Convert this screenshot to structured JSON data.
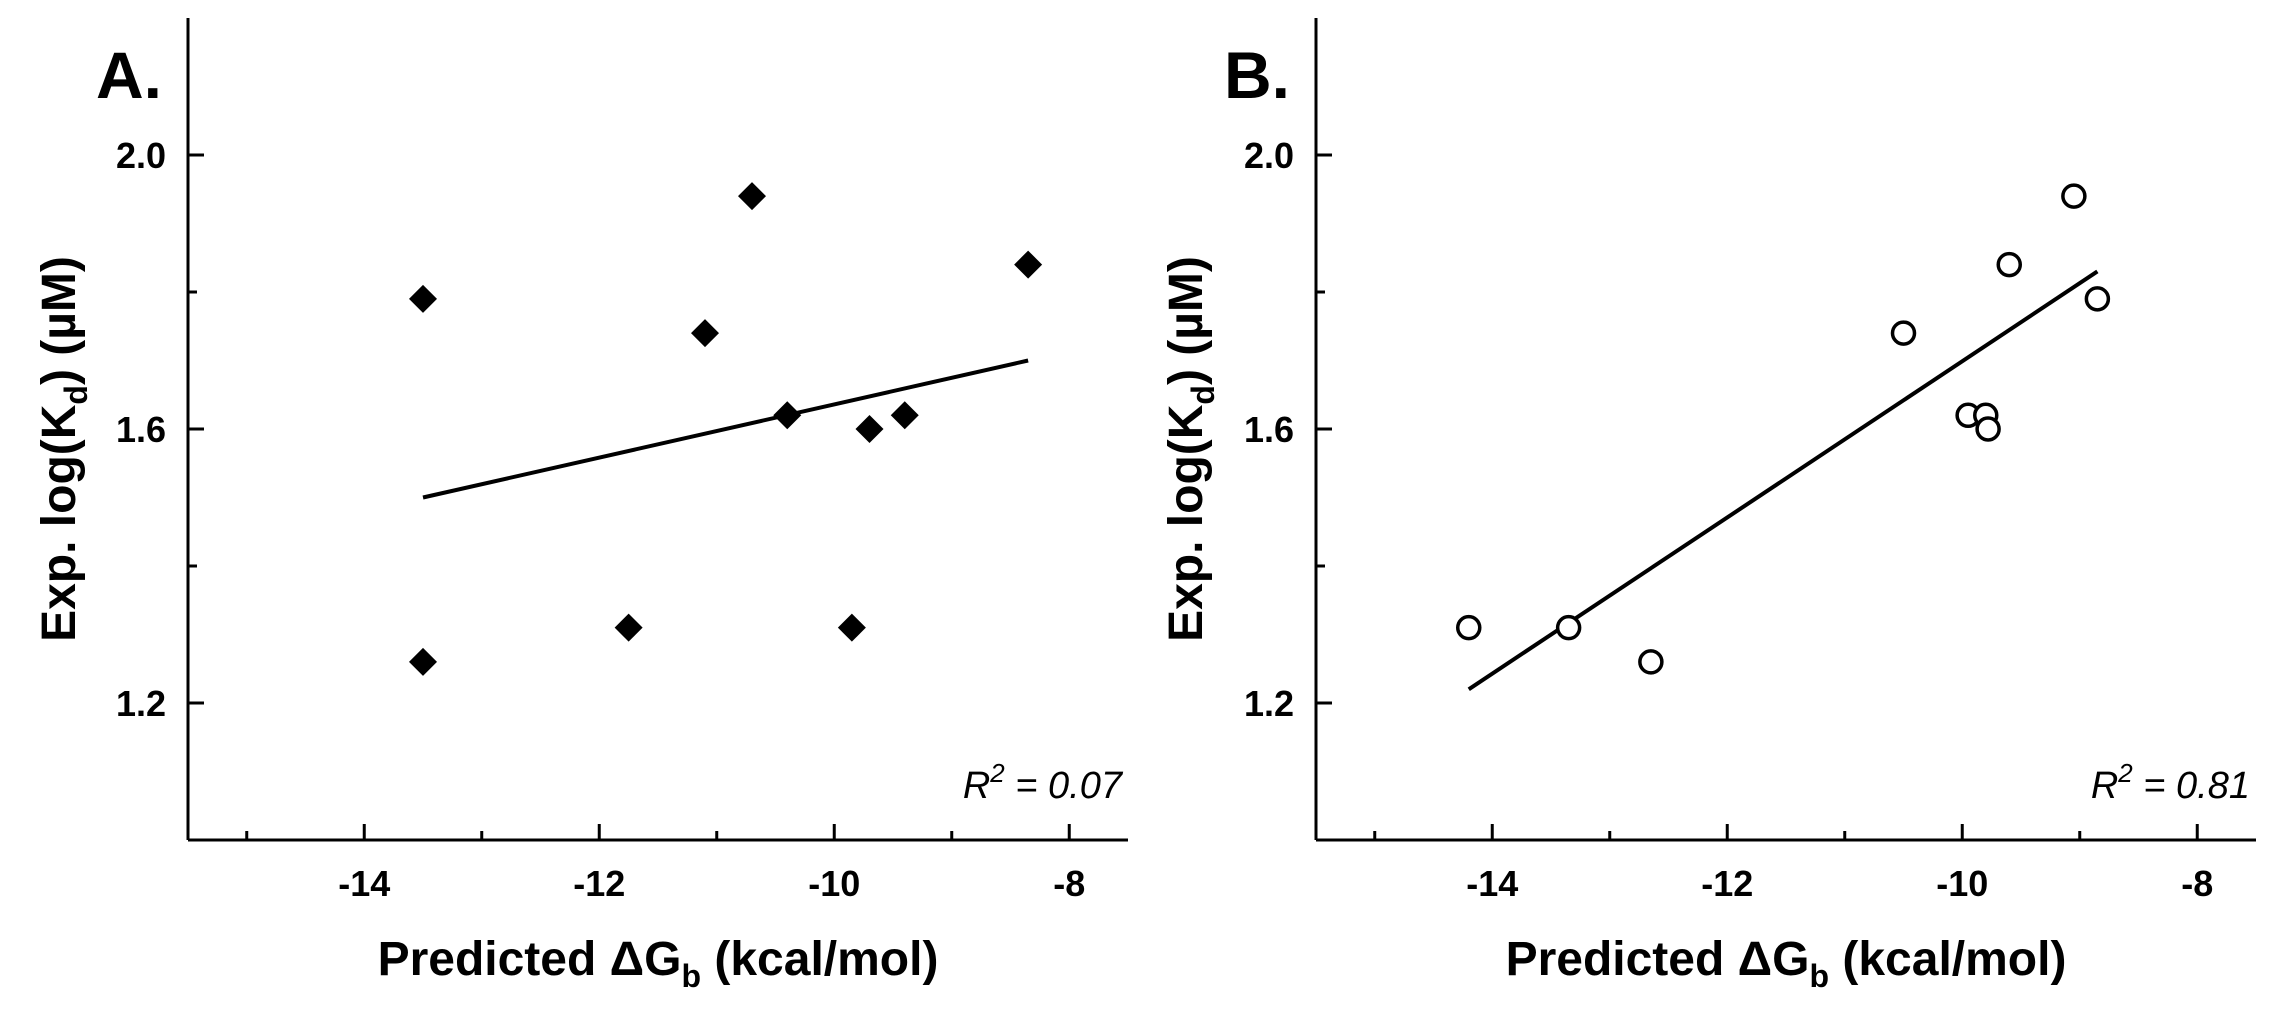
{
  "chart_data": [
    {
      "type": "scatter",
      "panel_label": "A.",
      "marker": "filled-diamond",
      "xlabel": "Predicted ΔG",
      "xlabel_sub": "b",
      "xlabel_units": " (kcal/mol)",
      "ylabel_pre": "Exp. log(K",
      "ylabel_sub": "d",
      "ylabel_post": ") (µM)",
      "xlim": [
        -15.5,
        -7.5
      ],
      "ylim": [
        1.0,
        2.2
      ],
      "xticks": [
        -14,
        -12,
        -10,
        -8
      ],
      "xtick_labels": [
        "-14",
        "-12",
        "-10",
        "-8"
      ],
      "xticks_minor": [
        -15,
        -13,
        -11,
        -9
      ],
      "yticks": [
        1.2,
        1.6,
        2.0
      ],
      "ytick_labels": [
        "1.2",
        "1.6",
        "2.0"
      ],
      "yticks_minor": [
        1.4,
        1.8
      ],
      "x": [
        -13.5,
        -13.5,
        -11.75,
        -11.1,
        -10.7,
        -10.4,
        -9.85,
        -9.7,
        -9.4,
        -8.35
      ],
      "y": [
        1.79,
        1.26,
        1.31,
        1.74,
        1.94,
        1.62,
        1.31,
        1.6,
        1.62,
        1.84
      ],
      "fit": {
        "x": [
          -13.5,
          -8.35
        ],
        "y": [
          1.5,
          1.7
        ]
      },
      "r2_label": "R",
      "r2_sup": "2",
      "r2_value": " = 0.07"
    },
    {
      "type": "scatter",
      "panel_label": "B.",
      "marker": "open-circle",
      "xlabel": "Predicted ΔG",
      "xlabel_sub": "b",
      "xlabel_units": " (kcal/mol)",
      "ylabel_pre": "Exp. log(K",
      "ylabel_sub": "d",
      "ylabel_post": ") (µM)",
      "xlim": [
        -15.5,
        -7.5
      ],
      "ylim": [
        1.0,
        2.2
      ],
      "xticks": [
        -14,
        -12,
        -10,
        -8
      ],
      "xtick_labels": [
        "-14",
        "-12",
        "-10",
        "-8"
      ],
      "xticks_minor": [
        -15,
        -13,
        -11,
        -9
      ],
      "yticks": [
        1.2,
        1.6,
        2.0
      ],
      "ytick_labels": [
        "1.2",
        "1.6",
        "2.0"
      ],
      "yticks_minor": [
        1.4,
        1.8
      ],
      "x": [
        -14.2,
        -13.35,
        -12.65,
        -10.5,
        -9.95,
        -9.8,
        -9.78,
        -9.6,
        -9.05,
        -8.85
      ],
      "y": [
        1.31,
        1.31,
        1.26,
        1.74,
        1.62,
        1.62,
        1.6,
        1.84,
        1.94,
        1.79
      ],
      "fit": {
        "x": [
          -14.2,
          -8.85
        ],
        "y": [
          1.22,
          1.83
        ]
      },
      "r2_label": "R",
      "r2_sup": "2",
      "r2_value": " = 0.81"
    }
  ]
}
